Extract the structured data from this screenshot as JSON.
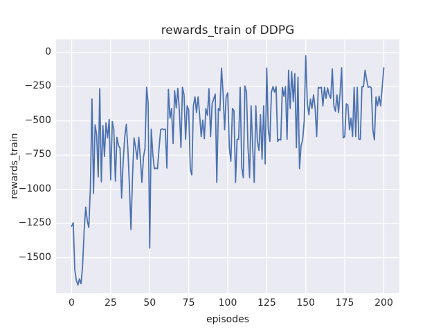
{
  "chart_data": {
    "type": "line",
    "title": "rewards_train of DDPG",
    "xlabel": "episodes",
    "ylabel": "rewards_train",
    "x_ticks": [
      0,
      25,
      50,
      75,
      100,
      125,
      150,
      175,
      200
    ],
    "y_ticks": [
      0,
      -250,
      -500,
      -750,
      -1000,
      -1250,
      -1500
    ],
    "xlim": [
      -10,
      210
    ],
    "ylim": [
      -1760,
      95
    ],
    "grid": true,
    "legend": false,
    "style": {
      "fig_bg": "#ffffff",
      "axes_bg": "#eaeaf2",
      "grid_color": "#ffffff",
      "line_color": "#4c72b0",
      "text_color": "#262626"
    },
    "series": [
      {
        "name": "rewards_train",
        "x_start": 0,
        "x_step": 1,
        "values": [
          -1270,
          -1245,
          -1590,
          -1665,
          -1700,
          -1655,
          -1690,
          -1560,
          -1300,
          -1130,
          -1230,
          -1280,
          -980,
          -340,
          -1030,
          -530,
          -600,
          -910,
          -265,
          -945,
          -535,
          -760,
          -515,
          -625,
          -490,
          -930,
          -505,
          -560,
          -940,
          -620,
          -680,
          -700,
          -1065,
          -800,
          -620,
          -525,
          -700,
          -980,
          -1295,
          -900,
          -625,
          -700,
          -780,
          -620,
          -770,
          -950,
          -765,
          -700,
          -255,
          -370,
          -1430,
          -560,
          -745,
          -850,
          -845,
          -850,
          -700,
          -565,
          -558,
          -565,
          -560,
          -845,
          -270,
          -480,
          -410,
          -665,
          -280,
          -405,
          -262,
          -425,
          -695,
          -255,
          -310,
          -635,
          -390,
          -420,
          -850,
          -895,
          -390,
          -325,
          -440,
          -325,
          -455,
          -615,
          -495,
          -630,
          -410,
          -460,
          -265,
          -615,
          -375,
          -340,
          -305,
          -950,
          -410,
          -425,
          -115,
          -290,
          -565,
          -325,
          -295,
          -695,
          -795,
          -410,
          -425,
          -950,
          -635,
          -635,
          -255,
          -845,
          -915,
          -245,
          -290,
          -695,
          -915,
          -390,
          -695,
          -950,
          -390,
          -650,
          -715,
          -455,
          -780,
          -390,
          -815,
          -115,
          -565,
          -650,
          -290,
          -250,
          -290,
          -250,
          -650,
          -635,
          -640,
          -255,
          -320,
          -250,
          -635,
          -130,
          -410,
          -140,
          -360,
          -155,
          -695,
          -180,
          -850,
          -680,
          -640,
          -500,
          -25,
          -375,
          -455,
          -340,
          -410,
          -310,
          -410,
          -615,
          -255,
          -260,
          -255,
          -390,
          -255,
          -335,
          -260,
          -310,
          -335,
          -120,
          -390,
          -430,
          -310,
          -440,
          -295,
          -112,
          -625,
          -615,
          -375,
          -385,
          -565,
          -480,
          -615,
          -255,
          -615,
          -255,
          -635,
          -635,
          -250,
          -250,
          -130,
          -200,
          -255,
          -250,
          -260,
          -565,
          -640,
          -325,
          -390,
          -320,
          -390,
          -250,
          -113
        ]
      }
    ]
  }
}
